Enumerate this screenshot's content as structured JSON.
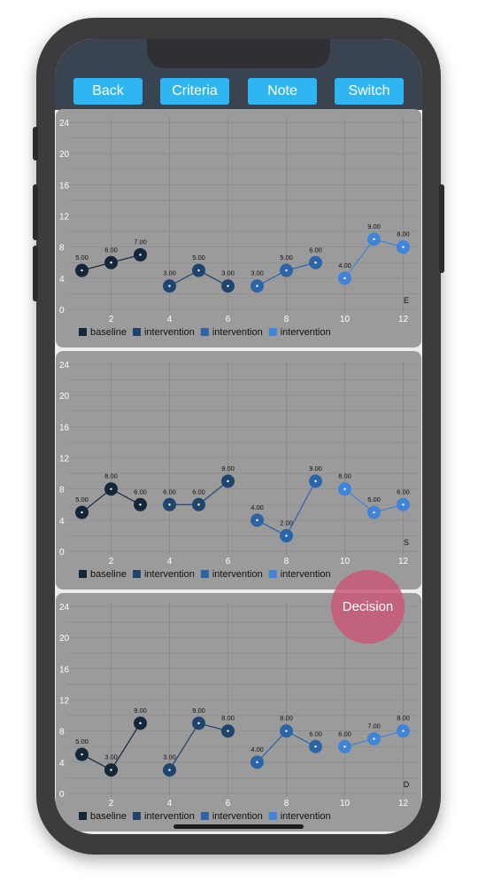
{
  "toolbar": {
    "back_label": "Back",
    "criteria_label": "Criteria",
    "note_label": "Note",
    "switch_label": "Switch"
  },
  "decision_label": "Decision",
  "colors": {
    "button": "#2fb6f2",
    "panel": "#9b9b9b",
    "decision": "#ca5576",
    "phase_colors": [
      "#13273a",
      "#1f456e",
      "#2b65a8",
      "#3f84d8"
    ]
  },
  "chart_data": [
    {
      "type": "line",
      "panel_letter": "E",
      "ylim": [
        0,
        24
      ],
      "yticks": [
        0,
        4,
        8,
        12,
        16,
        20,
        24
      ],
      "xlim": [
        0.5,
        12.5
      ],
      "xticks": [
        2,
        4,
        6,
        8,
        10,
        12
      ],
      "grid": true,
      "legend_position": "bottom-left",
      "series": [
        {
          "name": "baseline",
          "color": "#13273a",
          "x": [
            1,
            2,
            3
          ],
          "values": [
            5,
            6,
            7
          ]
        },
        {
          "name": "intervention",
          "color": "#1f456e",
          "x": [
            4,
            5,
            6
          ],
          "values": [
            3,
            5,
            3
          ]
        },
        {
          "name": "intervention",
          "color": "#2b65a8",
          "x": [
            7,
            8,
            9
          ],
          "values": [
            3,
            5,
            6
          ]
        },
        {
          "name": "intervention",
          "color": "#3f84d8",
          "x": [
            10,
            11,
            12
          ],
          "values": [
            4,
            9,
            8
          ]
        }
      ]
    },
    {
      "type": "line",
      "panel_letter": "S",
      "ylim": [
        0,
        24
      ],
      "yticks": [
        0,
        4,
        8,
        12,
        16,
        20,
        24
      ],
      "xlim": [
        0.5,
        12.5
      ],
      "xticks": [
        2,
        4,
        6,
        8,
        10,
        12
      ],
      "grid": true,
      "legend_position": "bottom-left",
      "series": [
        {
          "name": "baseline",
          "color": "#13273a",
          "x": [
            1,
            2,
            3
          ],
          "values": [
            5,
            8,
            6
          ]
        },
        {
          "name": "intervention",
          "color": "#1f456e",
          "x": [
            4,
            5,
            6
          ],
          "values": [
            6,
            6,
            9
          ]
        },
        {
          "name": "intervention",
          "color": "#2b65a8",
          "x": [
            7,
            8,
            9
          ],
          "values": [
            4,
            2,
            9
          ]
        },
        {
          "name": "intervention",
          "color": "#3f84d8",
          "x": [
            10,
            11,
            12
          ],
          "values": [
            8,
            5,
            6
          ]
        }
      ]
    },
    {
      "type": "line",
      "panel_letter": "D",
      "ylim": [
        0,
        24
      ],
      "yticks": [
        0,
        4,
        8,
        12,
        16,
        20,
        24
      ],
      "xlim": [
        0.5,
        12.5
      ],
      "xticks": [
        2,
        4,
        6,
        8,
        10,
        12
      ],
      "grid": true,
      "legend_position": "bottom-left",
      "series": [
        {
          "name": "baseline",
          "color": "#13273a",
          "x": [
            1,
            2,
            3
          ],
          "values": [
            5,
            3,
            9
          ]
        },
        {
          "name": "intervention",
          "color": "#1f456e",
          "x": [
            4,
            5,
            6
          ],
          "values": [
            3,
            9,
            8
          ]
        },
        {
          "name": "intervention",
          "color": "#2b65a8",
          "x": [
            7,
            8,
            9
          ],
          "values": [
            4,
            8,
            6
          ]
        },
        {
          "name": "intervention",
          "color": "#3f84d8",
          "x": [
            10,
            11,
            12
          ],
          "values": [
            6,
            7,
            8
          ]
        }
      ]
    }
  ]
}
